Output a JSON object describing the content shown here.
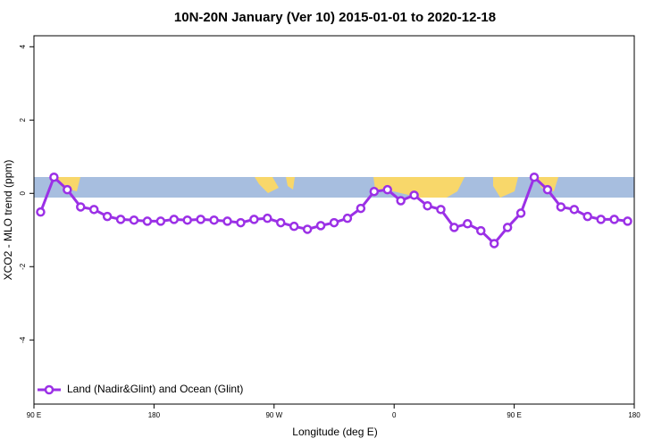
{
  "chart_data": {
    "type": "line",
    "title": "10N-20N January (Ver 10)   2015-01-01 to 2020-12-18",
    "xlabel": "Longitude (deg E)",
    "ylabel": "XCO2 - MLO trend (ppm)",
    "x": [
      95,
      105,
      115,
      125,
      135,
      145,
      155,
      165,
      175,
      185,
      195,
      205,
      215,
      225,
      235,
      245,
      255,
      265,
      275,
      285,
      295,
      305,
      315,
      325,
      335,
      345,
      355,
      365,
      375,
      385,
      395,
      405,
      415,
      425,
      435,
      445,
      455,
      465,
      475,
      485,
      495,
      505,
      515,
      525,
      535
    ],
    "series": [
      {
        "name": "Land (Nadir&Glint) and Ocean (Glint)",
        "color": "#9b30e6",
        "values": [
          -0.51,
          0.44,
          0.1,
          -0.37,
          -0.44,
          -0.63,
          -0.71,
          -0.73,
          -0.76,
          -0.76,
          -0.71,
          -0.73,
          -0.71,
          -0.73,
          -0.76,
          -0.8,
          -0.71,
          -0.68,
          -0.8,
          -0.9,
          -0.98,
          -0.88,
          -0.8,
          -0.68,
          -0.41,
          0.05,
          0.1,
          -0.2,
          -0.05,
          -0.34,
          -0.44,
          -0.93,
          -0.83,
          -1.02,
          -1.37,
          -0.93,
          -0.54,
          0.44,
          0.1,
          -0.37,
          -0.44,
          -0.63,
          -0.71,
          -0.71,
          -0.76
        ]
      }
    ],
    "xlim": [
      90,
      540
    ],
    "xticks": [
      {
        "value": 90,
        "label": "90 E"
      },
      180,
      {
        "value": 270,
        "label": "90 W"
      },
      {
        "value": 360,
        "label": "0"
      },
      {
        "value": 450,
        "label": "90 E"
      },
      {
        "value": 540,
        "label": "180"
      }
    ],
    "ylim": [
      -5.75,
      4.3
    ],
    "yticks": [
      -4,
      -2,
      0,
      2,
      4
    ],
    "legend": "bottom-left"
  }
}
